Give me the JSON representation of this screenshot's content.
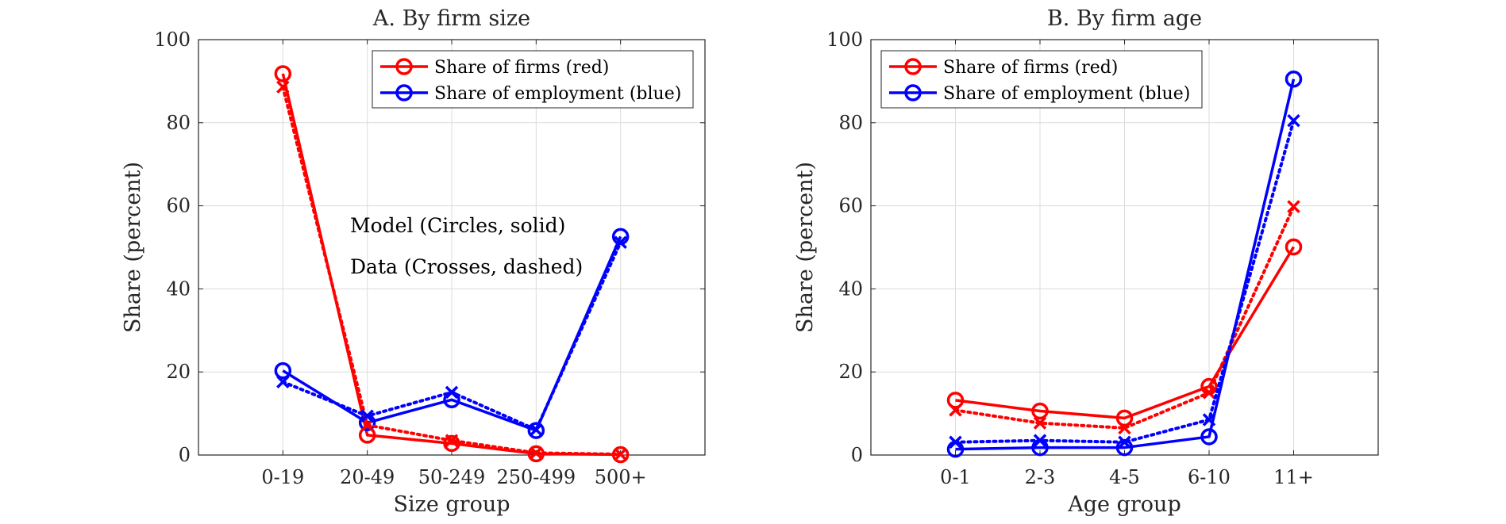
{
  "chart_data": [
    {
      "type": "line",
      "title": "A. By firm size",
      "xlabel": "Size group",
      "ylabel": "Share (percent)",
      "categories": [
        "0-19",
        "20-49",
        "50-249",
        "250-499",
        "500+"
      ],
      "ylim": [
        0,
        100
      ],
      "yticks": [
        0,
        20,
        40,
        60,
        80,
        100
      ],
      "grid": true,
      "legend_position": "top-right",
      "series": [
        {
          "name": "Share of firms (red)",
          "color": "#ff0000",
          "marker": "circle",
          "style": "solid",
          "values": [
            91.8,
            4.8,
            2.8,
            0.3,
            0.1
          ]
        },
        {
          "name": "Share of employment (blue)",
          "color": "#0000ff",
          "marker": "circle",
          "style": "solid",
          "values": [
            20.3,
            7.8,
            13.3,
            5.9,
            52.6
          ]
        },
        {
          "color": "#ff0000",
          "marker": "cross",
          "style": "dotted",
          "values": [
            88.6,
            7.2,
            3.5,
            0.5,
            0.2
          ]
        },
        {
          "color": "#0000ff",
          "marker": "cross",
          "style": "dotted",
          "values": [
            17.6,
            9.4,
            15.1,
            6.1,
            51.2
          ]
        }
      ],
      "annotations": [
        "Model (Circles, solid)",
        "Data (Crosses, dashed)"
      ]
    },
    {
      "type": "line",
      "title": "B. By firm age",
      "xlabel": "Age group",
      "ylabel": "Share (percent)",
      "categories": [
        "0-1",
        "2-3",
        "4-5",
        "6-10",
        "11+"
      ],
      "ylim": [
        0,
        100
      ],
      "yticks": [
        0,
        20,
        40,
        60,
        80,
        100
      ],
      "grid": true,
      "legend_position": "top-left",
      "series": [
        {
          "name": "Share of firms (red)",
          "color": "#ff0000",
          "marker": "circle",
          "style": "solid",
          "values": [
            13.2,
            10.6,
            8.9,
            16.5,
            50.1
          ]
        },
        {
          "name": "Share of employment (blue)",
          "color": "#0000ff",
          "marker": "circle",
          "style": "solid",
          "values": [
            1.4,
            1.8,
            1.8,
            4.4,
            90.5
          ]
        },
        {
          "color": "#ff0000",
          "marker": "cross",
          "style": "dotted",
          "values": [
            10.8,
            7.7,
            6.5,
            15.0,
            59.8
          ]
        },
        {
          "color": "#0000ff",
          "marker": "cross",
          "style": "dotted",
          "values": [
            3.1,
            3.5,
            3.1,
            8.5,
            80.5
          ]
        }
      ],
      "annotations": []
    }
  ]
}
